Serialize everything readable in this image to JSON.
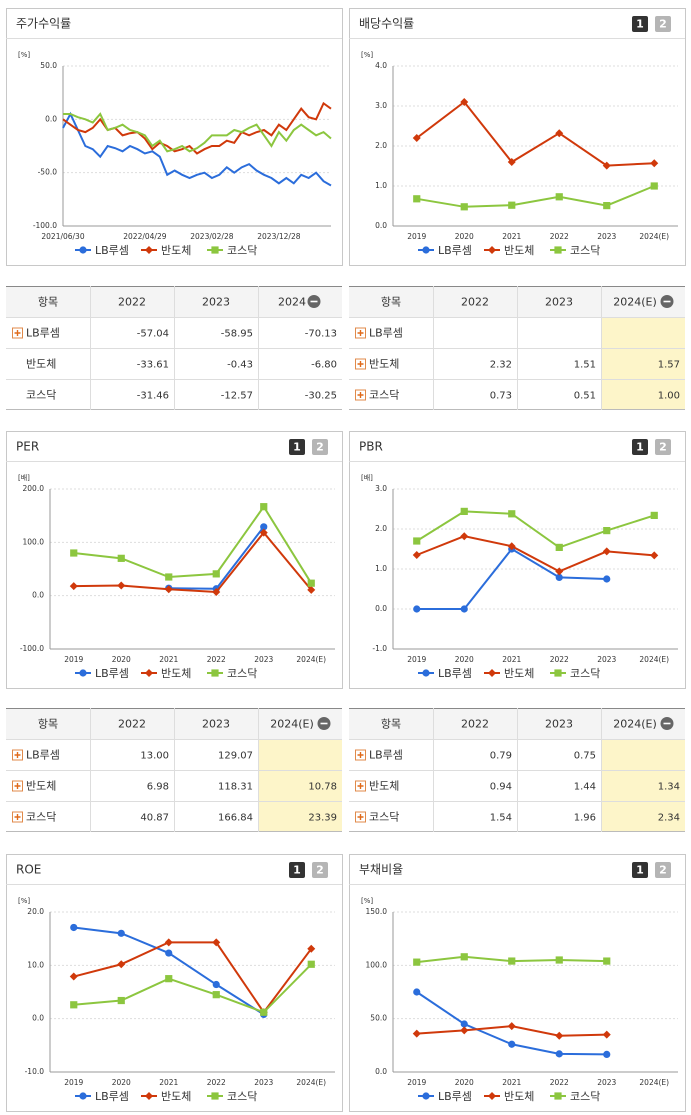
{
  "page_buttons": [
    "1",
    "2"
  ],
  "chart_data": [
    {
      "type": "line",
      "title": "주가수익률",
      "ylabel": "[%]",
      "markers": false,
      "show_buttons": false,
      "grid": true,
      "categories": [
        "2021/06/30",
        null,
        null,
        null,
        null,
        null,
        null,
        null,
        null,
        null,
        null,
        "2022/04/29",
        null,
        null,
        null,
        null,
        null,
        null,
        null,
        null,
        "2023/02/28",
        null,
        null,
        null,
        null,
        null,
        null,
        null,
        null,
        "2023/12/28",
        null,
        null,
        null,
        null,
        null,
        null,
        null
      ],
      "ylim": [
        -100,
        50
      ],
      "yticks": [
        {
          "value": -100,
          "label": "-100.0"
        },
        {
          "value": -50,
          "label": "-50.0"
        },
        {
          "value": 0,
          "label": "0.0"
        },
        {
          "value": 50,
          "label": "50.0"
        }
      ],
      "series": [
        {
          "name": "LB루셈",
          "color": "#2b6ddb",
          "marker": "circle",
          "values": [
            -8,
            5,
            -10,
            -25,
            -28,
            -35,
            -25,
            -27,
            -30,
            -25,
            -28,
            -32,
            -30,
            -35,
            -52,
            -48,
            -52,
            -55,
            -52,
            -50,
            -55,
            -52,
            -45,
            -50,
            -45,
            -42,
            -48,
            -52,
            -55,
            -60,
            -55,
            -60,
            -52,
            -55,
            -50,
            -58,
            -62
          ]
        },
        {
          "name": "반도체",
          "color": "#d0390b",
          "marker": "diamond",
          "values": [
            0,
            -5,
            -10,
            -12,
            -8,
            0,
            -10,
            -8,
            -15,
            -13,
            -12,
            -18,
            -28,
            -22,
            -25,
            -30,
            -28,
            -25,
            -32,
            -28,
            -25,
            -25,
            -20,
            -22,
            -12,
            -15,
            -12,
            -10,
            -15,
            -5,
            -10,
            0,
            10,
            2,
            0,
            15,
            10
          ]
        },
        {
          "name": "코스닥",
          "color": "#8cc63f",
          "marker": "square",
          "values": [
            5,
            5,
            2,
            0,
            -3,
            5,
            -10,
            -8,
            -5,
            -10,
            -12,
            -15,
            -25,
            -20,
            -30,
            -28,
            -25,
            -30,
            -27,
            -22,
            -15,
            -15,
            -15,
            -10,
            -12,
            -8,
            -5,
            -15,
            -25,
            -12,
            -20,
            -10,
            -5,
            -10,
            -15,
            -12,
            -18
          ]
        }
      ]
    },
    {
      "type": "line",
      "title": "배당수익률",
      "ylabel": "[%]",
      "markers": true,
      "show_buttons": true,
      "grid": true,
      "categories": [
        "2019",
        "2020",
        "2021",
        "2022",
        "2023",
        "2024(E)"
      ],
      "ylim": [
        0,
        4
      ],
      "yticks": [
        {
          "value": 0,
          "label": "0.0"
        },
        {
          "value": 1,
          "label": "1.0"
        },
        {
          "value": 2,
          "label": "2.0"
        },
        {
          "value": 3,
          "label": "3.0"
        },
        {
          "value": 4,
          "label": "4.0"
        }
      ],
      "series": [
        {
          "name": "LB루셈",
          "color": "#2b6ddb",
          "marker": "circle",
          "values": [
            null,
            null,
            null,
            null,
            null,
            null
          ]
        },
        {
          "name": "반도체",
          "color": "#d0390b",
          "marker": "diamond",
          "values": [
            2.2,
            3.1,
            1.6,
            2.32,
            1.51,
            1.57
          ]
        },
        {
          "name": "코스닥",
          "color": "#8cc63f",
          "marker": "square",
          "values": [
            0.68,
            0.48,
            0.52,
            0.73,
            0.51,
            1.0
          ]
        }
      ]
    },
    {
      "type": "line",
      "title": "PER",
      "ylabel": "[배]",
      "markers": true,
      "show_buttons": true,
      "grid": true,
      "categories": [
        "2019",
        "2020",
        "2021",
        "2022",
        "2023",
        "2024(E)"
      ],
      "ylim": [
        -100,
        200
      ],
      "yticks": [
        {
          "value": -100,
          "label": "-100.0"
        },
        {
          "value": 0,
          "label": "0.0"
        },
        {
          "value": 100,
          "label": "100.0"
        },
        {
          "value": 200,
          "label": "200.0"
        }
      ],
      "series": [
        {
          "name": "LB루셈",
          "color": "#2b6ddb",
          "marker": "circle",
          "values": [
            null,
            null,
            14,
            13.0,
            129.07,
            null
          ]
        },
        {
          "name": "반도체",
          "color": "#d0390b",
          "marker": "diamond",
          "values": [
            18,
            19,
            12,
            6.98,
            118.31,
            10.78
          ]
        },
        {
          "name": "코스닥",
          "color": "#8cc63f",
          "marker": "square",
          "values": [
            80,
            70,
            35,
            40.87,
            166.84,
            23.39
          ]
        }
      ]
    },
    {
      "type": "line",
      "title": "PBR",
      "ylabel": "[배]",
      "markers": true,
      "show_buttons": true,
      "grid": true,
      "categories": [
        "2019",
        "2020",
        "2021",
        "2022",
        "2023",
        "2024(E)"
      ],
      "ylim": [
        -1,
        3
      ],
      "yticks": [
        {
          "value": -1,
          "label": "-1.0"
        },
        {
          "value": 0,
          "label": "0.0"
        },
        {
          "value": 1,
          "label": "1.0"
        },
        {
          "value": 2,
          "label": "2.0"
        },
        {
          "value": 3,
          "label": "3.0"
        }
      ],
      "series": [
        {
          "name": "LB루셈",
          "color": "#2b6ddb",
          "marker": "circle",
          "values": [
            0,
            0,
            1.5,
            0.79,
            0.75,
            null
          ]
        },
        {
          "name": "반도체",
          "color": "#d0390b",
          "marker": "diamond",
          "values": [
            1.35,
            1.82,
            1.57,
            0.94,
            1.44,
            1.34
          ]
        },
        {
          "name": "코스닥",
          "color": "#8cc63f",
          "marker": "square",
          "values": [
            1.7,
            2.44,
            2.38,
            1.54,
            1.96,
            2.34
          ]
        }
      ]
    },
    {
      "type": "line",
      "title": "ROE",
      "ylabel": "[%]",
      "markers": true,
      "show_buttons": true,
      "grid": true,
      "categories": [
        "2019",
        "2020",
        "2021",
        "2022",
        "2023",
        "2024(E)"
      ],
      "ylim": [
        -10,
        20
      ],
      "yticks": [
        {
          "value": -10,
          "label": "-10.0"
        },
        {
          "value": 0,
          "label": "0.0"
        },
        {
          "value": 10,
          "label": "10.0"
        },
        {
          "value": 20,
          "label": "20.0"
        }
      ],
      "series": [
        {
          "name": "LB루셈",
          "color": "#2b6ddb",
          "marker": "circle",
          "values": [
            17.1,
            16.0,
            12.3,
            6.4,
            0.8,
            null
          ]
        },
        {
          "name": "반도체",
          "color": "#d0390b",
          "marker": "diamond",
          "values": [
            7.9,
            10.2,
            14.3,
            14.3,
            1.2,
            13.1
          ]
        },
        {
          "name": "코스닥",
          "color": "#8cc63f",
          "marker": "square",
          "values": [
            2.6,
            3.4,
            7.5,
            4.5,
            1.2,
            10.2
          ]
        }
      ]
    },
    {
      "type": "line",
      "title": "부채비율",
      "ylabel": "[%]",
      "markers": true,
      "show_buttons": true,
      "grid": true,
      "categories": [
        "2019",
        "2020",
        "2021",
        "2022",
        "2023",
        "2024(E)"
      ],
      "ylim": [
        0,
        150
      ],
      "yticks": [
        {
          "value": 0,
          "label": "0.0"
        },
        {
          "value": 50,
          "label": "50.0"
        },
        {
          "value": 100,
          "label": "100.0"
        },
        {
          "value": 150,
          "label": "150.0"
        }
      ],
      "series": [
        {
          "name": "LB루셈",
          "color": "#2b6ddb",
          "marker": "circle",
          "values": [
            75,
            45,
            26,
            17,
            16.5,
            null
          ]
        },
        {
          "name": "반도체",
          "color": "#d0390b",
          "marker": "diamond",
          "values": [
            36,
            39,
            43,
            34,
            35,
            null
          ]
        },
        {
          "name": "코스닥",
          "color": "#8cc63f",
          "marker": "square",
          "values": [
            103,
            108,
            104,
            105,
            104,
            null
          ]
        }
      ]
    }
  ],
  "tables": [
    {
      "header": [
        "항목",
        "2022",
        "2023",
        "2024"
      ],
      "highlight_last_column": false,
      "rows": [
        [
          "LB루셈",
          "-57.04",
          "-58.95",
          "-70.13"
        ],
        [
          "반도체",
          "-33.61",
          "-0.43",
          "-6.80"
        ],
        [
          "코스닥",
          "-31.46",
          "-12.57",
          "-30.25"
        ]
      ]
    },
    {
      "header": [
        "항목",
        "2022",
        "2023",
        "2024(E)"
      ],
      "highlight_last_column": true,
      "rows": [
        [
          "LB루셈",
          null,
          null,
          null
        ],
        [
          "반도체",
          "2.32",
          "1.51",
          "1.57"
        ],
        [
          "코스닥",
          "0.73",
          "0.51",
          "1.00"
        ]
      ]
    },
    {
      "header": [
        "항목",
        "2022",
        "2023",
        "2024(E)"
      ],
      "highlight_last_column": true,
      "rows": [
        [
          "LB루셈",
          "13.00",
          "129.07",
          null
        ],
        [
          "반도체",
          "6.98",
          "118.31",
          "10.78"
        ],
        [
          "코스닥",
          "40.87",
          "166.84",
          "23.39"
        ]
      ]
    },
    {
      "header": [
        "항목",
        "2022",
        "2023",
        "2024(E)"
      ],
      "highlight_last_column": true,
      "rows": [
        [
          "LB루셈",
          "0.79",
          "0.75",
          null
        ],
        [
          "반도체",
          "0.94",
          "1.44",
          "1.34"
        ],
        [
          "코스닥",
          "1.54",
          "1.96",
          "2.34"
        ]
      ]
    }
  ]
}
